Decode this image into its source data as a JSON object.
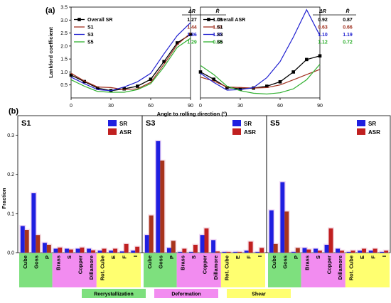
{
  "panel_a_label": "(a)",
  "panel_b_label": "(b)",
  "colors": {
    "overall": "#000000",
    "S1": "#a0301e",
    "S3": "#2020d0",
    "S5": "#30b030",
    "SR": "#1f1fe0",
    "ASR": "#c02020",
    "recryst": "#7ee07e",
    "deform": "#f28cf0",
    "shear": "#ffff70"
  },
  "chart_data": [
    {
      "type": "line",
      "panel": "(a) left",
      "ylabel": "Lankford coefficient",
      "x": [
        0,
        15,
        30,
        45,
        60,
        75,
        90
      ],
      "xticks": [
        "0",
        "30",
        "60",
        "90"
      ],
      "yticks": [
        "0.5",
        "1.0",
        "1.5",
        "2.0",
        "2.5",
        "3.0",
        "3.5"
      ],
      "xlim": [
        0,
        90
      ],
      "ylim": [
        0,
        3.5
      ],
      "series": [
        {
          "name": "Overall SR",
          "values": [
            [
              0,
              0.88
            ],
            [
              10,
              0.63
            ],
            [
              20,
              0.38
            ],
            [
              30,
              0.28
            ],
            [
              40,
              0.35
            ],
            [
              50,
              0.45
            ],
            [
              60,
              0.72
            ],
            [
              70,
              1.4
            ],
            [
              80,
              2.12
            ],
            [
              90,
              2.45
            ]
          ]
        },
        {
          "name": "S1",
          "values": [
            [
              0,
              0.95
            ],
            [
              10,
              0.65
            ],
            [
              20,
              0.42
            ],
            [
              30,
              0.4
            ],
            [
              40,
              0.32
            ],
            [
              50,
              0.35
            ],
            [
              60,
              0.6
            ],
            [
              70,
              1.3
            ],
            [
              80,
              2.05
            ],
            [
              90,
              2.5
            ]
          ]
        },
        {
          "name": "S3",
          "values": [
            [
              0,
              0.8
            ],
            [
              10,
              0.55
            ],
            [
              20,
              0.32
            ],
            [
              30,
              0.28
            ],
            [
              40,
              0.42
            ],
            [
              50,
              0.62
            ],
            [
              60,
              0.95
            ],
            [
              70,
              1.7
            ],
            [
              80,
              2.4
            ],
            [
              90,
              2.9
            ]
          ]
        },
        {
          "name": "S5",
          "values": [
            [
              0,
              0.7
            ],
            [
              10,
              0.45
            ],
            [
              20,
              0.25
            ],
            [
              30,
              0.22
            ],
            [
              40,
              0.22
            ],
            [
              50,
              0.32
            ],
            [
              60,
              0.55
            ],
            [
              70,
              1.2
            ],
            [
              80,
              1.95
            ],
            [
              90,
              2.3
            ]
          ]
        }
      ],
      "table": {
        "headers": [
          "ΔR",
          "R̄"
        ],
        "rows": [
          {
            "name": "Overall SR",
            "dr": "1.27",
            "r": "1.03"
          },
          {
            "name": "S1",
            "dr": "1.44",
            "r": "1.01"
          },
          {
            "name": "S3",
            "dr": "1.36",
            "r": "1.25"
          },
          {
            "name": "S5",
            "dr": "1.29",
            "r": "0.86"
          }
        ]
      }
    },
    {
      "type": "line",
      "panel": "(a) right",
      "x": [
        0,
        15,
        30,
        45,
        60,
        75,
        90
      ],
      "xticks": [
        "0",
        "30",
        "60",
        "90"
      ],
      "xlim": [
        0,
        90
      ],
      "ylim": [
        0,
        3.5
      ],
      "series": [
        {
          "name": "Overall ASR",
          "values": [
            [
              0,
              1.0
            ],
            [
              10,
              0.72
            ],
            [
              20,
              0.4
            ],
            [
              30,
              0.35
            ],
            [
              40,
              0.38
            ],
            [
              50,
              0.45
            ],
            [
              60,
              0.62
            ],
            [
              70,
              1.0
            ],
            [
              80,
              1.48
            ],
            [
              90,
              1.62
            ]
          ]
        },
        {
          "name": "S1",
          "values": [
            [
              0,
              0.8
            ],
            [
              10,
              0.65
            ],
            [
              20,
              0.42
            ],
            [
              30,
              0.4
            ],
            [
              40,
              0.38
            ],
            [
              50,
              0.4
            ],
            [
              60,
              0.5
            ],
            [
              70,
              0.7
            ],
            [
              80,
              0.9
            ],
            [
              90,
              1.1
            ]
          ]
        },
        {
          "name": "S3",
          "values": [
            [
              0,
              0.95
            ],
            [
              10,
              0.6
            ],
            [
              20,
              0.3
            ],
            [
              30,
              0.32
            ],
            [
              40,
              0.4
            ],
            [
              50,
              0.78
            ],
            [
              60,
              1.4
            ],
            [
              70,
              2.35
            ],
            [
              80,
              3.4
            ],
            [
              90,
              2.4
            ]
          ]
        },
        {
          "name": "S5",
          "values": [
            [
              0,
              1.25
            ],
            [
              10,
              0.9
            ],
            [
              20,
              0.45
            ],
            [
              30,
              0.28
            ],
            [
              40,
              0.18
            ],
            [
              50,
              0.15
            ],
            [
              60,
              0.2
            ],
            [
              70,
              0.35
            ],
            [
              80,
              0.7
            ],
            [
              90,
              1.3
            ]
          ]
        }
      ],
      "table": {
        "headers": [
          "ΔR",
          "R̄"
        ],
        "rows": [
          {
            "name": "Overall ASR",
            "dr": "0.92",
            "r": "0.87"
          },
          {
            "name": "S1",
            "dr": "0.63",
            "r": "0.66"
          },
          {
            "name": "S3",
            "dr": "1.10",
            "r": "1.19"
          },
          {
            "name": "S5",
            "dr": "1.12",
            "r": "0.72"
          }
        ]
      },
      "xlabel": "Angle to rolling direction (°)"
    },
    {
      "type": "bar",
      "panel": "(b)",
      "ylabel": "Fraction",
      "ylim": [
        0,
        0.35
      ],
      "yticks": [
        "0.0",
        "0.1",
        "0.2",
        "0.3"
      ],
      "categories": [
        "Cube",
        "Goss",
        "P",
        "Brass",
        "S",
        "Copper",
        "Dillamore",
        "Rot. Cube",
        "E",
        "F",
        "I"
      ],
      "group_labels": [
        "Recrystallization",
        "Deformation",
        "Shear"
      ],
      "legend": [
        "SR",
        "ASR"
      ],
      "subplots": [
        {
          "name": "S1",
          "SR": [
            0.068,
            0.152,
            0.025,
            0.01,
            0.01,
            0.01,
            0.01,
            0.005,
            0.005,
            0.003,
            0.005
          ],
          "ASR": [
            0.058,
            0.045,
            0.02,
            0.013,
            0.008,
            0.013,
            0.006,
            0.01,
            0.01,
            0.022,
            0.015
          ]
        },
        {
          "name": "S3",
          "SR": [
            0.045,
            0.285,
            0.012,
            0.002,
            0.002,
            0.045,
            0.032,
            0.002,
            0.002,
            0.005,
            0.002
          ],
          "ASR": [
            0.095,
            0.235,
            0.03,
            0.01,
            0.02,
            0.062,
            0.003,
            0.002,
            0.002,
            0.028,
            0.012
          ]
        },
        {
          "name": "S5",
          "SR": [
            0.108,
            0.18,
            0.002,
            0.012,
            0.01,
            0.02,
            0.01,
            0.002,
            0.005,
            0.005,
            0.002
          ],
          "ASR": [
            0.022,
            0.105,
            0.012,
            0.008,
            0.005,
            0.062,
            0.005,
            0.005,
            0.01,
            0.01,
            0.005
          ]
        }
      ]
    }
  ]
}
